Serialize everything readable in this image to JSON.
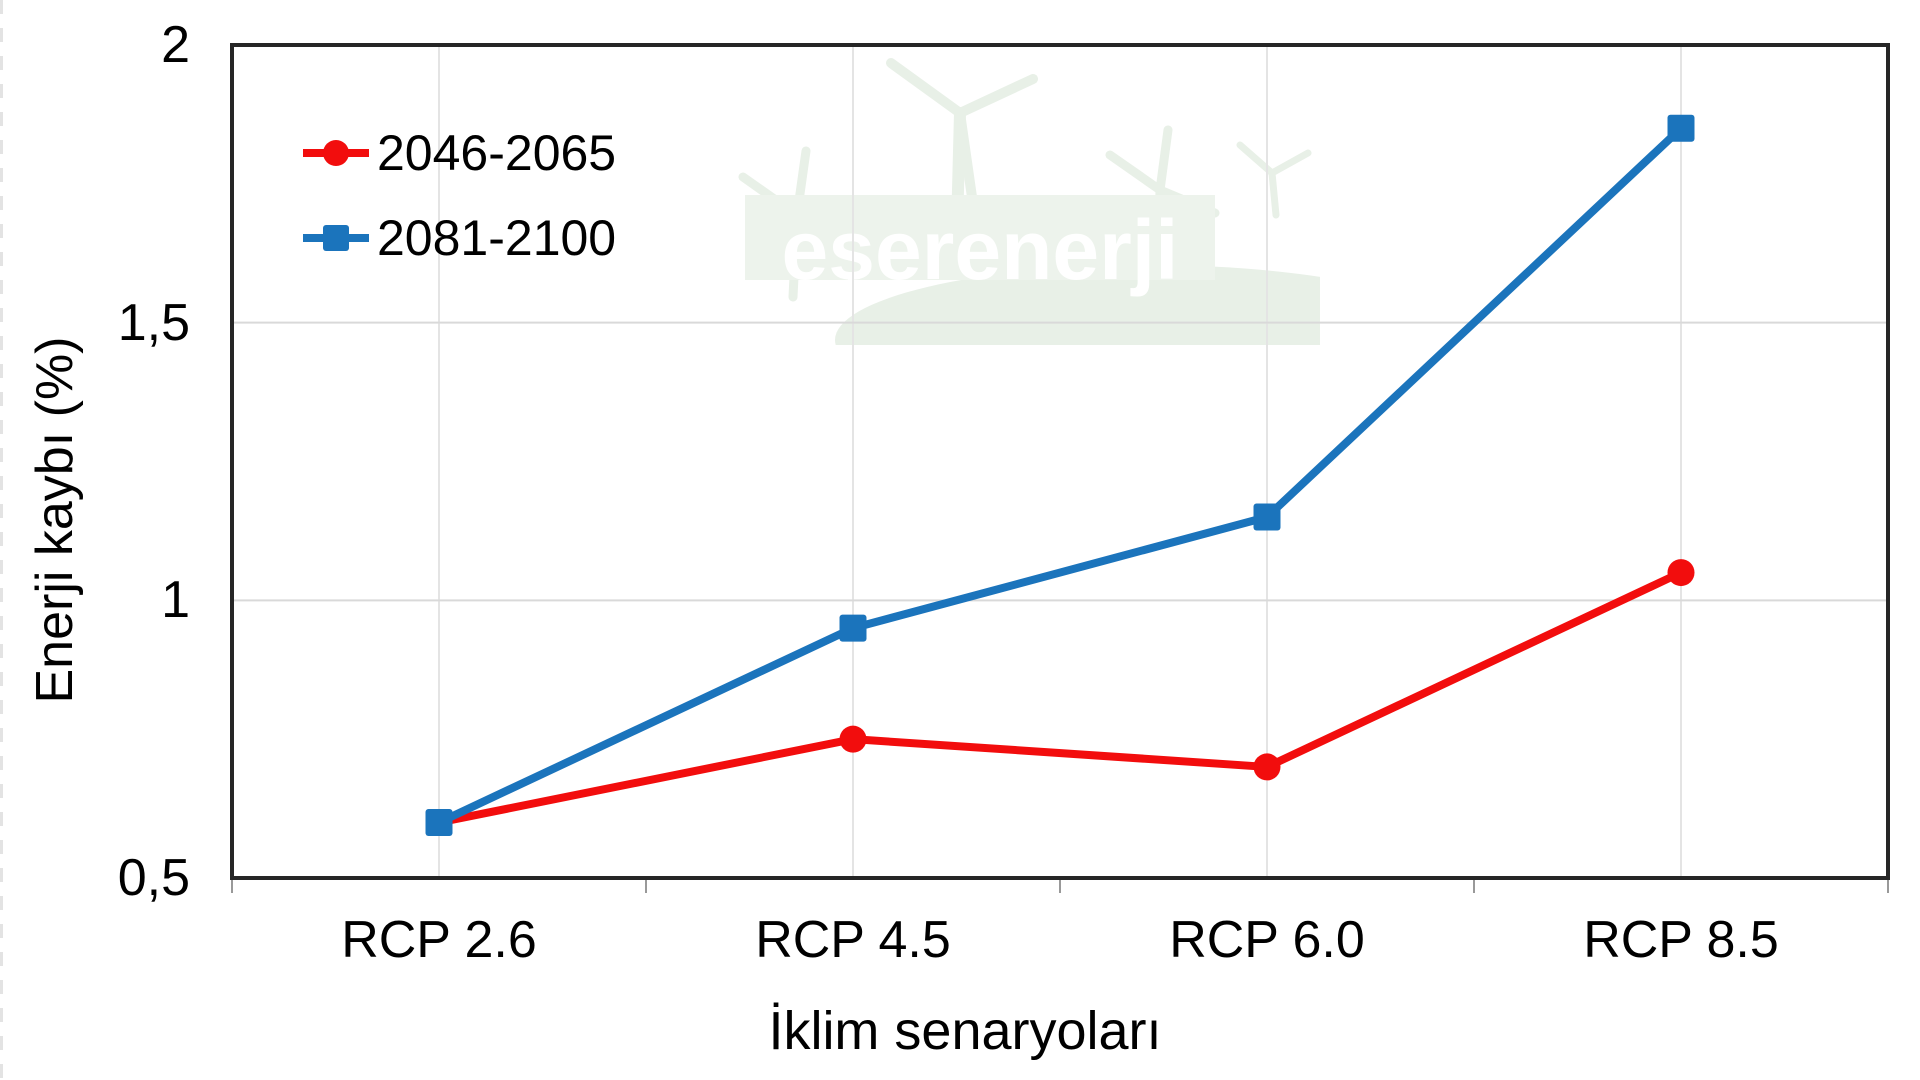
{
  "watermark": {
    "text": "eşerenerji"
  },
  "colors": {
    "series_red": "#f20d0d",
    "series_blue": "#1b74bc",
    "frame": "#262626",
    "h_gridline": "#d9d9d9",
    "v_gridline": "#e4e4e4",
    "axis_tick": "#999999",
    "watermark_shapes": "#e8f0e7",
    "watermark_band": "#edf3ec"
  },
  "chart_data": {
    "type": "line",
    "categories": [
      "RCP 2.6",
      "RCP 4.5",
      "RCP 6.0",
      "RCP 8.5"
    ],
    "series": [
      {
        "name": "2046-2065",
        "color": "#f20d0d",
        "marker": "circle",
        "values": [
          0.6,
          0.75,
          0.7,
          1.05
        ]
      },
      {
        "name": "2081-2100",
        "color": "#1b74bc",
        "marker": "square",
        "values": [
          0.6,
          0.95,
          1.15,
          1.85
        ]
      }
    ],
    "title": "",
    "xlabel": "İklim senaryoları",
    "ylabel": "Enerji kaybı (%)",
    "ylim": [
      0.5,
      2
    ],
    "yticks": [
      {
        "value": 0.5,
        "label": "0,5"
      },
      {
        "value": 1,
        "label": "1"
      },
      {
        "value": 1.5,
        "label": "1,5"
      },
      {
        "value": 2,
        "label": "2"
      }
    ],
    "grid": true,
    "legend_position": "top-left"
  }
}
